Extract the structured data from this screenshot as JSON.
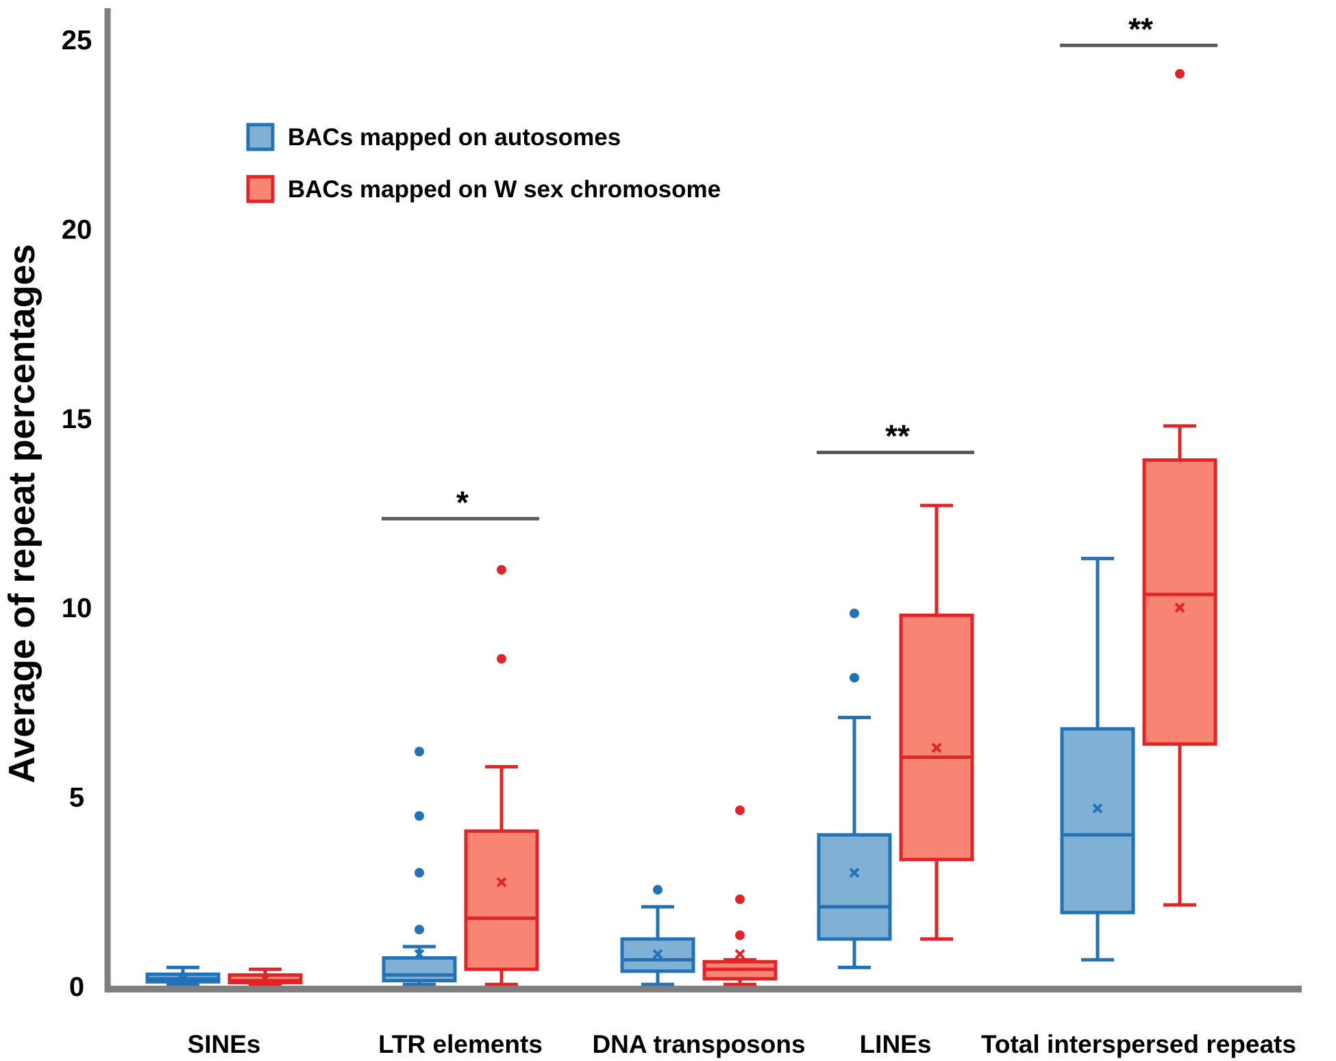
{
  "chart_data": {
    "type": "box",
    "title": "",
    "ylabel": "Average of repeat percentages",
    "xlabel": "",
    "ylim": [
      0,
      25.5
    ],
    "yticks": [
      0,
      5,
      10,
      15,
      20,
      25
    ],
    "categories": [
      "SINEs",
      "LTR elements",
      "DNA transposons",
      "LINEs",
      "Total interspersed repeats"
    ],
    "series": [
      {
        "name": "BACs mapped on autosomes",
        "color": "#2472b6",
        "fill": "#80b1d5",
        "boxes": [
          {
            "whisker_low": 0.05,
            "q1": 0.12,
            "median": 0.2,
            "q3": 0.32,
            "whisker_high": 0.5,
            "mean": 0.2,
            "outliers": []
          },
          {
            "whisker_low": 0.05,
            "q1": 0.15,
            "median": 0.3,
            "q3": 0.75,
            "whisker_high": 1.05,
            "mean": 0.85,
            "outliers": [
              6.2,
              4.5,
              3.0,
              1.5
            ]
          },
          {
            "whisker_low": 0.05,
            "q1": 0.4,
            "median": 0.7,
            "q3": 1.25,
            "whisker_high": 2.1,
            "mean": 0.85,
            "outliers": [
              2.55
            ]
          },
          {
            "whisker_low": 0.5,
            "q1": 1.25,
            "median": 2.1,
            "q3": 4.0,
            "whisker_high": 7.1,
            "mean": 3.0,
            "outliers": [
              9.85,
              8.15
            ]
          },
          {
            "whisker_low": 0.7,
            "q1": 1.95,
            "median": 4.0,
            "q3": 6.8,
            "whisker_high": 11.3,
            "mean": 4.7,
            "outliers": []
          }
        ]
      },
      {
        "name": "BACs mapped on W sex chromosome",
        "color": "#e02528",
        "fill": "#f88574",
        "boxes": [
          {
            "whisker_low": 0.05,
            "q1": 0.1,
            "median": 0.15,
            "q3": 0.3,
            "whisker_high": 0.45,
            "mean": 0.2,
            "outliers": []
          },
          {
            "whisker_low": 0.05,
            "q1": 0.45,
            "median": 1.8,
            "q3": 4.1,
            "whisker_high": 5.8,
            "mean": 2.75,
            "outliers": [
              11.0,
              8.65
            ]
          },
          {
            "whisker_low": 0.05,
            "q1": 0.2,
            "median": 0.45,
            "q3": 0.65,
            "whisker_high": 0.7,
            "mean": 0.85,
            "outliers": [
              4.65,
              2.3,
              1.35
            ]
          },
          {
            "whisker_low": 1.25,
            "q1": 3.35,
            "median": 6.05,
            "q3": 9.8,
            "whisker_high": 12.7,
            "mean": 6.3,
            "outliers": []
          },
          {
            "whisker_low": 2.15,
            "q1": 6.4,
            "median": 10.35,
            "q3": 13.9,
            "whisker_high": 14.8,
            "mean": 10.0,
            "outliers": [
              24.1
            ]
          }
        ]
      }
    ],
    "significance": [
      {
        "category": "LTR elements",
        "label": "*",
        "y": 12.35
      },
      {
        "category": "LINEs",
        "label": "**",
        "y": 14.1
      },
      {
        "category": "Total interspersed repeats",
        "label": "**",
        "y": 24.85
      }
    ],
    "legend": {
      "position": "top-left",
      "entries": [
        "BACs mapped on autosomes",
        "BACs mapped on W sex chromosome"
      ]
    },
    "axis_color": "#7f7f7f",
    "sig_line_color": "#595959"
  }
}
